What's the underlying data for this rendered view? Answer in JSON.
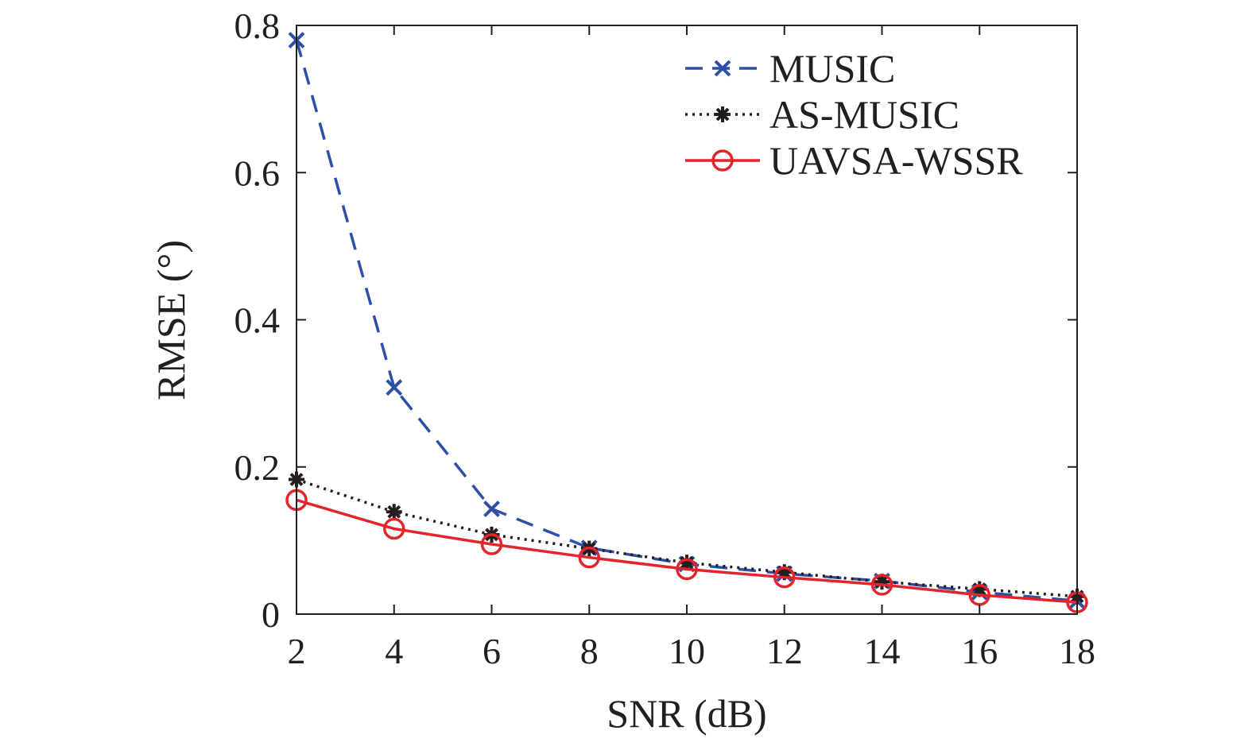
{
  "chart_data": {
    "type": "line",
    "title": "",
    "xlabel": "SNR (dB)",
    "ylabel": "RMSE (°)",
    "x": [
      2,
      4,
      6,
      8,
      10,
      12,
      14,
      16,
      18
    ],
    "xlim": [
      2,
      18
    ],
    "ylim": [
      0,
      0.8
    ],
    "xticks": [
      "2",
      "4",
      "6",
      "8",
      "10",
      "12",
      "14",
      "16",
      "18"
    ],
    "yticks": [
      "0",
      "0.2",
      "0.4",
      "0.6",
      "0.8"
    ],
    "ytick_values": [
      0,
      0.2,
      0.4,
      0.6,
      0.8
    ],
    "grid": false,
    "legend_position": "top-right",
    "series": [
      {
        "name": "MUSIC",
        "color": "#2e4fa8",
        "line_style": "dashed",
        "marker": "x",
        "values": [
          0.78,
          0.308,
          0.143,
          0.09,
          0.068,
          0.055,
          0.045,
          0.03,
          0.018
        ]
      },
      {
        "name": "AS-MUSIC",
        "color": "#231f20",
        "line_style": "dotted",
        "marker": "asterisk",
        "values": [
          0.183,
          0.139,
          0.108,
          0.089,
          0.07,
          0.057,
          0.044,
          0.034,
          0.024
        ]
      },
      {
        "name": "UAVSA-WSSR",
        "color": "#e3242b",
        "line_style": "solid",
        "marker": "circle",
        "values": [
          0.155,
          0.116,
          0.095,
          0.077,
          0.061,
          0.05,
          0.04,
          0.026,
          0.016
        ]
      }
    ]
  }
}
